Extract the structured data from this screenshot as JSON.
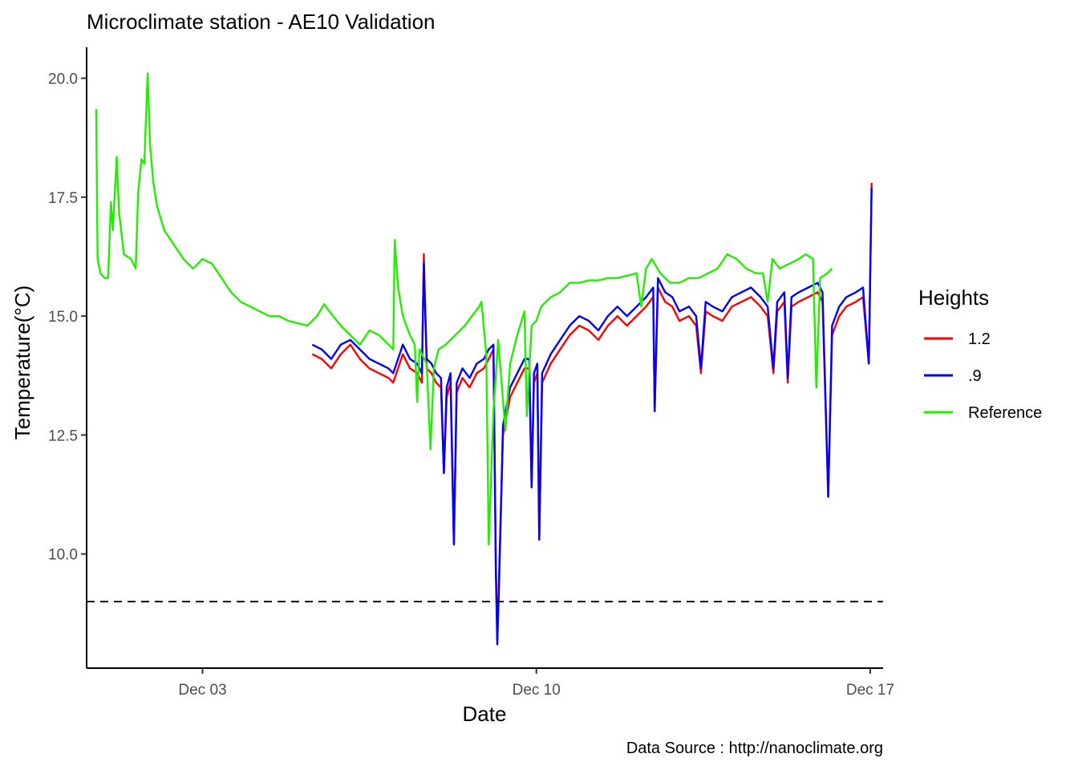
{
  "chart_data": {
    "type": "line",
    "title": "Microclimate station -  AE10 Validation",
    "xlabel": "Date",
    "ylabel": "Temperature(°C)",
    "caption": "Data Source : http://nanoclimate.org",
    "x_unit": "days",
    "x_ticks": [
      {
        "value": 3,
        "label": "Dec 03"
      },
      {
        "value": 10,
        "label": "Dec 10"
      },
      {
        "value": 17,
        "label": "Dec 17"
      }
    ],
    "y_ticks": [
      {
        "value": 10.0,
        "label": "10.0"
      },
      {
        "value": 12.5,
        "label": "12.5"
      },
      {
        "value": 15.0,
        "label": "15.0"
      },
      {
        "value": 17.5,
        "label": "17.5"
      },
      {
        "value": 20.0,
        "label": "20.0"
      }
    ],
    "xlim": [
      0.57,
      17.27
    ],
    "ylim": [
      7.6,
      20.65
    ],
    "grid": false,
    "legend": {
      "title": "Heights",
      "position": "right"
    },
    "hline": {
      "y": 9.0,
      "style": "dashed",
      "color": "#000000"
    },
    "series": [
      {
        "name": "1.2",
        "color": "#ff0000",
        "points": [
          [
            5.3,
            14.2
          ],
          [
            5.5,
            14.1
          ],
          [
            5.7,
            13.9
          ],
          [
            5.9,
            14.2
          ],
          [
            6.1,
            14.4
          ],
          [
            6.3,
            14.1
          ],
          [
            6.5,
            13.9
          ],
          [
            6.7,
            13.8
          ],
          [
            6.9,
            13.7
          ],
          [
            7.0,
            13.6
          ],
          [
            7.1,
            13.9
          ],
          [
            7.2,
            14.2
          ],
          [
            7.35,
            13.9
          ],
          [
            7.5,
            13.8
          ],
          [
            7.6,
            13.6
          ],
          [
            7.64,
            16.3
          ],
          [
            7.7,
            13.9
          ],
          [
            7.8,
            13.8
          ],
          [
            7.9,
            13.6
          ],
          [
            8.0,
            13.5
          ],
          [
            8.06,
            11.7
          ],
          [
            8.12,
            13.3
          ],
          [
            8.2,
            13.6
          ],
          [
            8.27,
            10.2
          ],
          [
            8.33,
            13.4
          ],
          [
            8.45,
            13.7
          ],
          [
            8.6,
            13.5
          ],
          [
            8.75,
            13.8
          ],
          [
            8.9,
            13.9
          ],
          [
            9.0,
            14.1
          ],
          [
            9.1,
            14.3
          ],
          [
            9.15,
            9.8
          ],
          [
            9.18,
            8.2
          ],
          [
            9.22,
            9.6
          ],
          [
            9.3,
            12.5
          ],
          [
            9.45,
            13.3
          ],
          [
            9.6,
            13.6
          ],
          [
            9.75,
            13.9
          ],
          [
            9.85,
            13.9
          ],
          [
            9.9,
            11.4
          ],
          [
            9.95,
            13.6
          ],
          [
            10.02,
            13.8
          ],
          [
            10.06,
            10.3
          ],
          [
            10.12,
            13.6
          ],
          [
            10.3,
            14.0
          ],
          [
            10.5,
            14.3
          ],
          [
            10.7,
            14.6
          ],
          [
            10.9,
            14.8
          ],
          [
            11.1,
            14.7
          ],
          [
            11.3,
            14.5
          ],
          [
            11.5,
            14.8
          ],
          [
            11.7,
            15.0
          ],
          [
            11.9,
            14.8
          ],
          [
            12.1,
            15.0
          ],
          [
            12.3,
            15.2
          ],
          [
            12.45,
            15.4
          ],
          [
            12.48,
            13.0
          ],
          [
            12.55,
            15.6
          ],
          [
            12.7,
            15.3
          ],
          [
            12.85,
            15.2
          ],
          [
            13.0,
            14.9
          ],
          [
            13.2,
            15.0
          ],
          [
            13.35,
            14.8
          ],
          [
            13.45,
            13.8
          ],
          [
            13.55,
            15.1
          ],
          [
            13.7,
            15.0
          ],
          [
            13.9,
            14.9
          ],
          [
            14.1,
            15.2
          ],
          [
            14.3,
            15.3
          ],
          [
            14.5,
            15.4
          ],
          [
            14.7,
            15.2
          ],
          [
            14.85,
            15.0
          ],
          [
            14.97,
            13.8
          ],
          [
            15.05,
            15.1
          ],
          [
            15.2,
            15.3
          ],
          [
            15.27,
            13.6
          ],
          [
            15.35,
            15.2
          ],
          [
            15.5,
            15.3
          ],
          [
            15.7,
            15.4
          ],
          [
            15.9,
            15.5
          ],
          [
            16.0,
            15.3
          ],
          [
            16.12,
            11.2
          ],
          [
            16.2,
            14.6
          ],
          [
            16.35,
            15.0
          ],
          [
            16.5,
            15.2
          ],
          [
            16.7,
            15.3
          ],
          [
            16.85,
            15.4
          ],
          [
            16.97,
            14.0
          ],
          [
            17.03,
            17.8
          ]
        ]
      },
      {
        "name": ".9",
        "color": "#0000ff",
        "points": [
          [
            5.3,
            14.4
          ],
          [
            5.5,
            14.3
          ],
          [
            5.7,
            14.1
          ],
          [
            5.9,
            14.4
          ],
          [
            6.1,
            14.5
          ],
          [
            6.3,
            14.3
          ],
          [
            6.5,
            14.1
          ],
          [
            6.7,
            14.0
          ],
          [
            6.9,
            13.9
          ],
          [
            7.0,
            13.8
          ],
          [
            7.1,
            14.1
          ],
          [
            7.2,
            14.4
          ],
          [
            7.35,
            14.1
          ],
          [
            7.5,
            14.0
          ],
          [
            7.6,
            13.8
          ],
          [
            7.64,
            16.1
          ],
          [
            7.7,
            14.1
          ],
          [
            7.8,
            14.0
          ],
          [
            7.9,
            13.8
          ],
          [
            8.0,
            13.7
          ],
          [
            8.06,
            11.7
          ],
          [
            8.12,
            13.5
          ],
          [
            8.2,
            13.8
          ],
          [
            8.27,
            10.2
          ],
          [
            8.33,
            13.6
          ],
          [
            8.45,
            13.9
          ],
          [
            8.6,
            13.7
          ],
          [
            8.75,
            14.0
          ],
          [
            8.9,
            14.1
          ],
          [
            9.0,
            14.3
          ],
          [
            9.1,
            14.4
          ],
          [
            9.15,
            9.6
          ],
          [
            9.18,
            8.1
          ],
          [
            9.22,
            9.4
          ],
          [
            9.3,
            12.7
          ],
          [
            9.45,
            13.5
          ],
          [
            9.6,
            13.8
          ],
          [
            9.75,
            14.1
          ],
          [
            9.85,
            14.1
          ],
          [
            9.9,
            11.4
          ],
          [
            9.95,
            13.8
          ],
          [
            10.02,
            14.0
          ],
          [
            10.06,
            10.3
          ],
          [
            10.12,
            13.8
          ],
          [
            10.3,
            14.2
          ],
          [
            10.5,
            14.5
          ],
          [
            10.7,
            14.8
          ],
          [
            10.9,
            15.0
          ],
          [
            11.1,
            14.9
          ],
          [
            11.3,
            14.7
          ],
          [
            11.5,
            15.0
          ],
          [
            11.7,
            15.2
          ],
          [
            11.9,
            15.0
          ],
          [
            12.1,
            15.2
          ],
          [
            12.3,
            15.4
          ],
          [
            12.45,
            15.6
          ],
          [
            12.48,
            13.0
          ],
          [
            12.55,
            15.8
          ],
          [
            12.7,
            15.5
          ],
          [
            12.85,
            15.4
          ],
          [
            13.0,
            15.1
          ],
          [
            13.2,
            15.2
          ],
          [
            13.35,
            15.0
          ],
          [
            13.45,
            13.9
          ],
          [
            13.55,
            15.3
          ],
          [
            13.7,
            15.2
          ],
          [
            13.9,
            15.1
          ],
          [
            14.1,
            15.4
          ],
          [
            14.3,
            15.5
          ],
          [
            14.5,
            15.6
          ],
          [
            14.7,
            15.4
          ],
          [
            14.85,
            15.2
          ],
          [
            14.97,
            13.9
          ],
          [
            15.05,
            15.3
          ],
          [
            15.2,
            15.5
          ],
          [
            15.27,
            13.7
          ],
          [
            15.35,
            15.4
          ],
          [
            15.5,
            15.5
          ],
          [
            15.7,
            15.6
          ],
          [
            15.9,
            15.7
          ],
          [
            16.0,
            15.5
          ],
          [
            16.12,
            11.2
          ],
          [
            16.2,
            14.8
          ],
          [
            16.35,
            15.2
          ],
          [
            16.5,
            15.4
          ],
          [
            16.7,
            15.5
          ],
          [
            16.85,
            15.6
          ],
          [
            16.97,
            14.0
          ],
          [
            17.03,
            17.7
          ]
        ]
      },
      {
        "name": "Reference",
        "color": "#22ee00",
        "points": [
          [
            0.77,
            19.35
          ],
          [
            0.8,
            16.2
          ],
          [
            0.86,
            15.9
          ],
          [
            0.95,
            15.8
          ],
          [
            1.02,
            15.8
          ],
          [
            1.08,
            17.4
          ],
          [
            1.12,
            16.8
          ],
          [
            1.2,
            18.35
          ],
          [
            1.25,
            17.2
          ],
          [
            1.35,
            16.3
          ],
          [
            1.5,
            16.2
          ],
          [
            1.6,
            16.0
          ],
          [
            1.65,
            17.6
          ],
          [
            1.72,
            18.3
          ],
          [
            1.78,
            18.2
          ],
          [
            1.85,
            20.1
          ],
          [
            1.9,
            18.6
          ],
          [
            1.97,
            17.8
          ],
          [
            2.05,
            17.3
          ],
          [
            2.2,
            16.8
          ],
          [
            2.4,
            16.5
          ],
          [
            2.6,
            16.2
          ],
          [
            2.8,
            16.0
          ],
          [
            3.0,
            16.2
          ],
          [
            3.2,
            16.1
          ],
          [
            3.4,
            15.8
          ],
          [
            3.6,
            15.5
          ],
          [
            3.8,
            15.3
          ],
          [
            4.0,
            15.2
          ],
          [
            4.2,
            15.1
          ],
          [
            4.4,
            15.0
          ],
          [
            4.6,
            15.0
          ],
          [
            4.8,
            14.9
          ],
          [
            5.0,
            14.85
          ],
          [
            5.2,
            14.8
          ],
          [
            5.4,
            15.0
          ],
          [
            5.55,
            15.25
          ],
          [
            5.7,
            15.05
          ],
          [
            5.9,
            14.8
          ],
          [
            6.1,
            14.6
          ],
          [
            6.3,
            14.4
          ],
          [
            6.5,
            14.7
          ],
          [
            6.7,
            14.6
          ],
          [
            6.9,
            14.4
          ],
          [
            7.0,
            14.3
          ],
          [
            7.03,
            16.6
          ],
          [
            7.1,
            15.6
          ],
          [
            7.2,
            15.0
          ],
          [
            7.35,
            14.6
          ],
          [
            7.45,
            14.4
          ],
          [
            7.5,
            13.2
          ],
          [
            7.55,
            14.3
          ],
          [
            7.7,
            14.0
          ],
          [
            7.78,
            12.2
          ],
          [
            7.85,
            13.9
          ],
          [
            7.95,
            14.3
          ],
          [
            8.1,
            14.4
          ],
          [
            8.3,
            14.6
          ],
          [
            8.5,
            14.8
          ],
          [
            8.65,
            15.0
          ],
          [
            8.8,
            15.2
          ],
          [
            8.85,
            15.3
          ],
          [
            8.95,
            14.2
          ],
          [
            9.0,
            10.2
          ],
          [
            9.1,
            13.0
          ],
          [
            9.2,
            14.5
          ],
          [
            9.35,
            12.6
          ],
          [
            9.45,
            14.0
          ],
          [
            9.6,
            14.6
          ],
          [
            9.75,
            15.1
          ],
          [
            9.8,
            12.9
          ],
          [
            9.9,
            14.8
          ],
          [
            10.0,
            14.9
          ],
          [
            10.1,
            15.2
          ],
          [
            10.3,
            15.4
          ],
          [
            10.5,
            15.5
          ],
          [
            10.7,
            15.7
          ],
          [
            10.9,
            15.7
          ],
          [
            11.1,
            15.75
          ],
          [
            11.3,
            15.75
          ],
          [
            11.5,
            15.8
          ],
          [
            11.7,
            15.8
          ],
          [
            11.9,
            15.85
          ],
          [
            12.1,
            15.9
          ],
          [
            12.2,
            15.2
          ],
          [
            12.3,
            16.0
          ],
          [
            12.42,
            16.2
          ],
          [
            12.6,
            15.9
          ],
          [
            12.8,
            15.7
          ],
          [
            13.0,
            15.7
          ],
          [
            13.2,
            15.8
          ],
          [
            13.4,
            15.8
          ],
          [
            13.6,
            15.9
          ],
          [
            13.8,
            16.0
          ],
          [
            14.0,
            16.3
          ],
          [
            14.2,
            16.2
          ],
          [
            14.4,
            16.0
          ],
          [
            14.6,
            15.9
          ],
          [
            14.75,
            15.9
          ],
          [
            14.85,
            15.3
          ],
          [
            14.95,
            16.2
          ],
          [
            15.1,
            16.0
          ],
          [
            15.3,
            16.1
          ],
          [
            15.5,
            16.2
          ],
          [
            15.65,
            16.3
          ],
          [
            15.8,
            16.2
          ],
          [
            15.87,
            13.5
          ],
          [
            15.95,
            15.8
          ],
          [
            16.1,
            15.9
          ],
          [
            16.2,
            16.0
          ]
        ]
      }
    ]
  }
}
